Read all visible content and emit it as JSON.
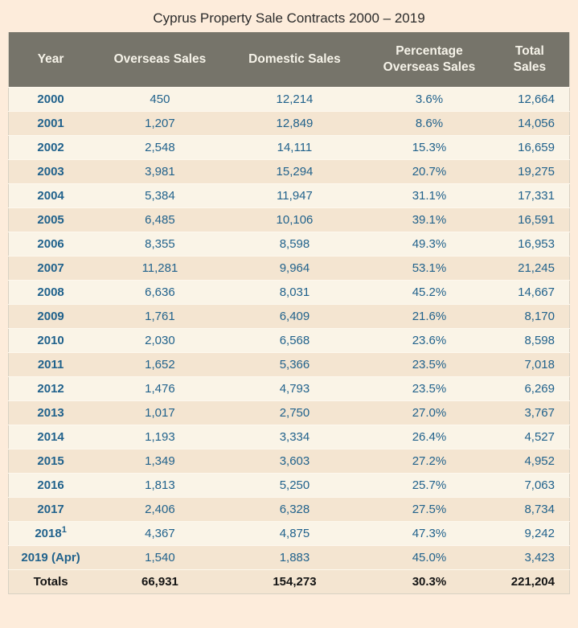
{
  "title": "Cyprus Property Sale Contracts 2000 – 2019",
  "colors": {
    "page_background": "#fdecdb",
    "header_background": "#76746a",
    "header_text": "#f6f3e9",
    "row_light": "#faf4e7",
    "row_dark": "#f4e5d1",
    "totals_background": "#d9d5c5",
    "data_text_blue": "#21628c",
    "totals_text": "#141414"
  },
  "table": {
    "columns": [
      {
        "lines": [
          "Year"
        ]
      },
      {
        "lines": [
          "Overseas Sales"
        ]
      },
      {
        "lines": [
          "Domestic Sales"
        ]
      },
      {
        "lines": [
          "Percentage",
          "Overseas Sales"
        ]
      },
      {
        "lines": [
          "Total",
          "Sales"
        ]
      }
    ],
    "rows": [
      {
        "year": "2000",
        "overseas": "450",
        "domestic": "12,214",
        "percentage": "3.6%",
        "total": "12,664"
      },
      {
        "year": "2001",
        "overseas": "1,207",
        "domestic": "12,849",
        "percentage": "8.6%",
        "total": "14,056"
      },
      {
        "year": "2002",
        "overseas": "2,548",
        "domestic": "14,111",
        "percentage": "15.3%",
        "total": "16,659"
      },
      {
        "year": "2003",
        "overseas": "3,981",
        "domestic": "15,294",
        "percentage": "20.7%",
        "total": "19,275"
      },
      {
        "year": "2004",
        "overseas": "5,384",
        "domestic": "11,947",
        "percentage": "31.1%",
        "total": "17,331"
      },
      {
        "year": "2005",
        "overseas": "6,485",
        "domestic": "10,106",
        "percentage": "39.1%",
        "total": "16,591"
      },
      {
        "year": "2006",
        "overseas": "8,355",
        "domestic": "8,598",
        "percentage": "49.3%",
        "total": "16,953"
      },
      {
        "year": "2007",
        "overseas": "11,281",
        "domestic": "9,964",
        "percentage": "53.1%",
        "total": "21,245"
      },
      {
        "year": "2008",
        "overseas": "6,636",
        "domestic": "8,031",
        "percentage": "45.2%",
        "total": "14,667"
      },
      {
        "year": "2009",
        "overseas": "1,761",
        "domestic": "6,409",
        "percentage": "21.6%",
        "total": "8,170"
      },
      {
        "year": "2010",
        "overseas": "2,030",
        "domestic": "6,568",
        "percentage": "23.6%",
        "total": "8,598"
      },
      {
        "year": "2011",
        "overseas": "1,652",
        "domestic": "5,366",
        "percentage": "23.5%",
        "total": "7,018"
      },
      {
        "year": "2012",
        "overseas": "1,476",
        "domestic": "4,793",
        "percentage": "23.5%",
        "total": "6,269"
      },
      {
        "year": "2013",
        "overseas": "1,017",
        "domestic": "2,750",
        "percentage": "27.0%",
        "total": "3,767"
      },
      {
        "year": "2014",
        "overseas": "1,193",
        "domestic": "3,334",
        "percentage": "26.4%",
        "total": "4,527"
      },
      {
        "year": "2015",
        "overseas": "1,349",
        "domestic": "3,603",
        "percentage": "27.2%",
        "total": "4,952"
      },
      {
        "year": "2016",
        "overseas": "1,813",
        "domestic": "5,250",
        "percentage": "25.7%",
        "total": "7,063"
      },
      {
        "year": "2017",
        "overseas": "2,406",
        "domestic": "6,328",
        "percentage": "27.5%",
        "total": "8,734"
      },
      {
        "year": "2018",
        "year_sup": "1",
        "overseas": "4,367",
        "domestic": "4,875",
        "percentage": "47.3%",
        "total": "9,242"
      },
      {
        "year": "2019 (Apr)",
        "overseas": "1,540",
        "domestic": "1,883",
        "percentage": "45.0%",
        "total": "3,423"
      }
    ],
    "totals": {
      "year": "Totals",
      "overseas": "66,931",
      "domestic": "154,273",
      "percentage": "30.3%",
      "total": "221,204"
    }
  },
  "chart_data": {
    "type": "table",
    "title": "Cyprus Property Sale Contracts 2000 – 2019",
    "columns": [
      "Year",
      "Overseas Sales",
      "Domestic Sales",
      "Percentage Overseas Sales",
      "Total Sales"
    ],
    "rows": [
      [
        "2000",
        450,
        12214,
        "3.6%",
        12664
      ],
      [
        "2001",
        1207,
        12849,
        "8.6%",
        14056
      ],
      [
        "2002",
        2548,
        14111,
        "15.3%",
        16659
      ],
      [
        "2003",
        3981,
        15294,
        "20.7%",
        19275
      ],
      [
        "2004",
        5384,
        11947,
        "31.1%",
        17331
      ],
      [
        "2005",
        6485,
        10106,
        "39.1%",
        16591
      ],
      [
        "2006",
        8355,
        8598,
        "49.3%",
        16953
      ],
      [
        "2007",
        11281,
        9964,
        "53.1%",
        21245
      ],
      [
        "2008",
        6636,
        8031,
        "45.2%",
        14667
      ],
      [
        "2009",
        1761,
        6409,
        "21.6%",
        8170
      ],
      [
        "2010",
        2030,
        6568,
        "23.6%",
        8598
      ],
      [
        "2011",
        1652,
        5366,
        "23.5%",
        7018
      ],
      [
        "2012",
        1476,
        4793,
        "23.5%",
        6269
      ],
      [
        "2013",
        1017,
        2750,
        "27.0%",
        3767
      ],
      [
        "2014",
        1193,
        3334,
        "26.4%",
        4527
      ],
      [
        "2015",
        1349,
        3603,
        "27.2%",
        4952
      ],
      [
        "2016",
        1813,
        5250,
        "25.7%",
        7063
      ],
      [
        "2017",
        2406,
        6328,
        "27.5%",
        8734
      ],
      [
        "2018¹",
        4367,
        4875,
        "47.3%",
        9242
      ],
      [
        "2019 (Apr)",
        1540,
        1883,
        "45.0%",
        3423
      ],
      [
        "Totals",
        66931,
        154273,
        "30.3%",
        221204
      ]
    ],
    "footnote_marker_on": "2018"
  }
}
